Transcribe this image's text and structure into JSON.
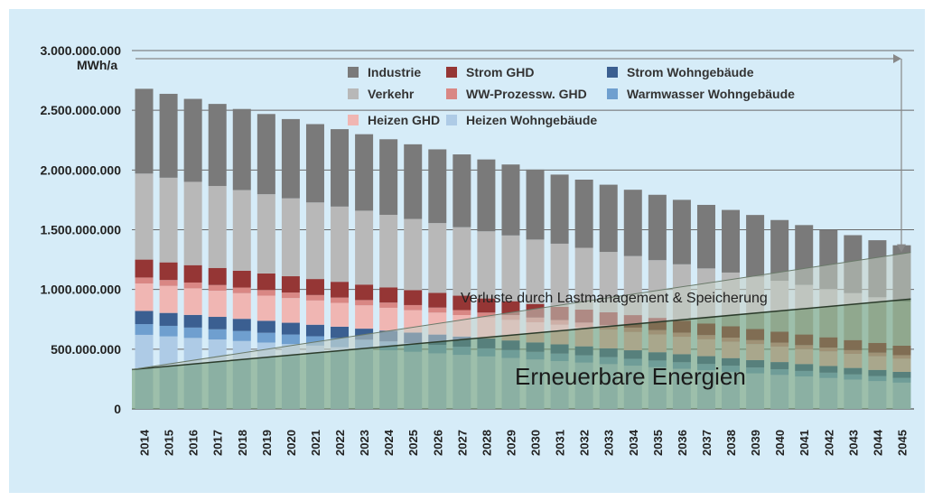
{
  "chart_data": {
    "type": "bar",
    "stacked": true,
    "unit_label": "MWh/a",
    "y_ticks": [
      "0",
      "500.000.000",
      "1.000.000.000",
      "1.500.000.000",
      "2.000.000.000",
      "2.500.000.000",
      "3.000.000.000"
    ],
    "ylim": [
      0,
      3000000000
    ],
    "categories": [
      "2014",
      "2015",
      "2016",
      "2017",
      "2018",
      "2019",
      "2020",
      "2021",
      "2022",
      "2023",
      "2024",
      "2025",
      "2026",
      "2027",
      "2028",
      "2029",
      "2030",
      "2031",
      "2032",
      "2033",
      "2034",
      "2035",
      "2036",
      "2037",
      "2038",
      "2039",
      "2040",
      "2041",
      "2042",
      "2043",
      "2044",
      "2045"
    ],
    "series": [
      {
        "name": "Heizen Wohngebäude",
        "color": "#aecbe6",
        "start": 620000000,
        "end": 220000000
      },
      {
        "name": "Warmwasser Wohngebäude",
        "color": "#6f9fcf",
        "start": 90000000,
        "end": 40000000
      },
      {
        "name": "Strom Wohngebäude",
        "color": "#3b5f91",
        "start": 110000000,
        "end": 50000000
      },
      {
        "name": "Heizen GHD",
        "color": "#f0b6b3",
        "start": 230000000,
        "end": 110000000
      },
      {
        "name": "WW-Prozessw. GHD",
        "color": "#d98784",
        "start": 50000000,
        "end": 30000000
      },
      {
        "name": "Strom GHD",
        "color": "#953635",
        "start": 150000000,
        "end": 80000000
      },
      {
        "name": "Verkehr",
        "color": "#b8b8b8",
        "start": 720000000,
        "end": 370000000
      },
      {
        "name": "Industrie",
        "color": "#7a7a7a",
        "start": 710000000,
        "end": 470000000
      }
    ],
    "legend_order": [
      "Industrie",
      "Strom GHD",
      "Strom Wohngebäude",
      "Verkehr",
      "WW-Prozessw. GHD",
      "Warmwasser Wohngebäude",
      "Heizen GHD",
      "Heizen Wohngebäude"
    ],
    "legend_placement": "top",
    "overlays": {
      "renewables": {
        "label": "Erneuerbare Energien",
        "start": 330000000,
        "end": 920000000,
        "color": "#6f9a6c"
      },
      "losses": {
        "label": "Verluste durch Lastmanagement & Speicherung",
        "start": 330000000,
        "end": 1310000000,
        "color": "#c5cfc5"
      }
    },
    "grid": true
  }
}
